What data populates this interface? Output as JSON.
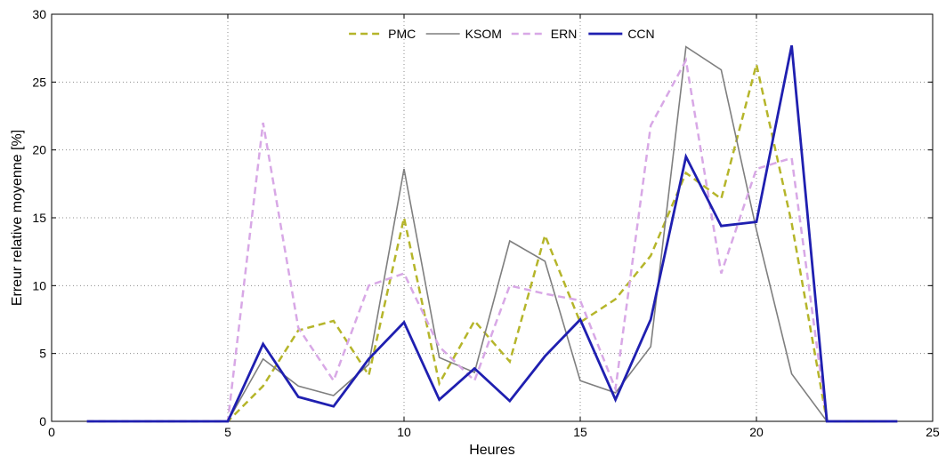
{
  "chart_data": {
    "type": "line",
    "xlabel": "Heures",
    "ylabel": "Erreur relative moyenne [%]",
    "xlim": [
      0,
      25
    ],
    "ylim": [
      0,
      30
    ],
    "xticks": [
      0,
      5,
      10,
      15,
      20,
      25
    ],
    "yticks": [
      0,
      5,
      10,
      15,
      20,
      25,
      30
    ],
    "x_tick_labels": [
      "0",
      "5",
      "10",
      "15",
      "20",
      "25"
    ],
    "y_tick_labels": [
      "0",
      "5",
      "10",
      "15",
      "20",
      "25",
      "30"
    ],
    "grid": true,
    "legend_position": "top-center",
    "x": [
      1,
      2,
      3,
      4,
      5,
      6,
      7,
      8,
      9,
      10,
      11,
      12,
      13,
      14,
      15,
      16,
      17,
      18,
      19,
      20,
      21,
      22,
      23,
      24
    ],
    "series": [
      {
        "name": "PMC",
        "color": "#b5b52a",
        "style": "dashed",
        "values": [
          0,
          0,
          0,
          0,
          0,
          2.6,
          6.7,
          7.4,
          3.4,
          15.0,
          2.8,
          7.4,
          4.4,
          13.7,
          7.3,
          9.0,
          12.2,
          18.3,
          16.4,
          26.3,
          14.6,
          0,
          0,
          0
        ]
      },
      {
        "name": "KSOM",
        "color": "#7f7f7f",
        "style": "solid",
        "values": [
          0,
          0,
          0,
          0,
          0,
          4.6,
          2.6,
          1.9,
          4.2,
          18.6,
          4.7,
          3.6,
          13.3,
          11.8,
          3.0,
          2.1,
          5.5,
          27.6,
          25.9,
          14.1,
          3.5,
          0,
          0,
          0
        ]
      },
      {
        "name": "ERN",
        "color": "#d8a8e6",
        "style": "dashed",
        "values": [
          0,
          0,
          0,
          0,
          0,
          22.0,
          6.9,
          3.0,
          10.0,
          10.9,
          5.5,
          3.0,
          10.0,
          9.4,
          8.9,
          2.4,
          21.8,
          26.6,
          10.9,
          18.6,
          19.4,
          0,
          0,
          0
        ]
      },
      {
        "name": "CCN",
        "color": "#1f1fb0",
        "style": "solid-thick",
        "values": [
          0,
          0,
          0,
          0,
          0,
          5.7,
          1.8,
          1.1,
          4.6,
          7.3,
          1.6,
          3.9,
          1.5,
          4.8,
          7.5,
          1.6,
          7.5,
          19.5,
          14.4,
          14.7,
          27.7,
          0,
          0,
          0
        ]
      }
    ]
  }
}
